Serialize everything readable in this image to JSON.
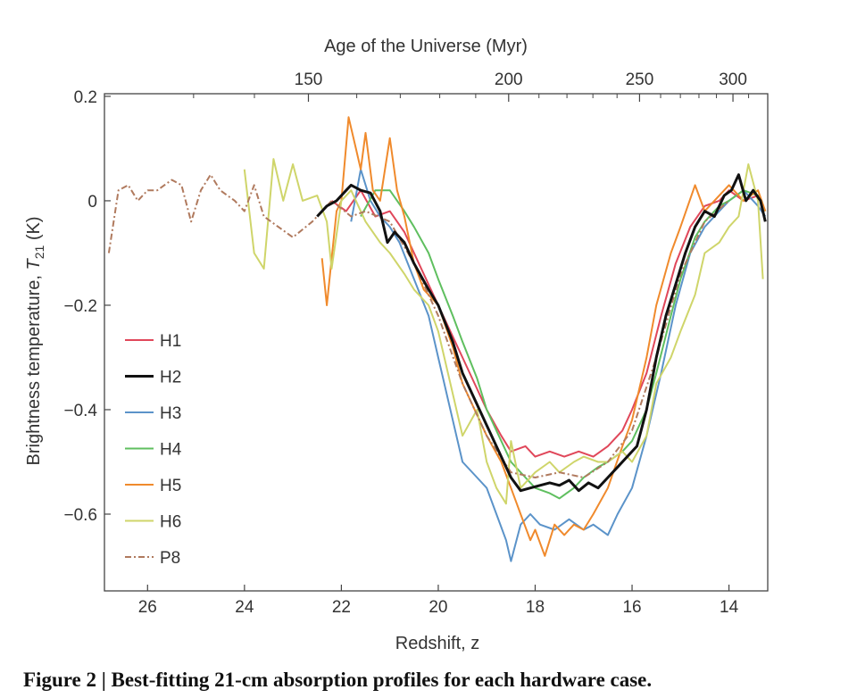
{
  "chart_data": {
    "type": "line",
    "title": "",
    "xlabel": "Redshift, z",
    "ylabel_prefix": "Brightness temperature, ",
    "ylabel_var": "T",
    "ylabel_sub": "21",
    "ylabel_suffix": " (K)",
    "top_xlabel": "Age of the Universe (Myr)",
    "xlim": [
      26.89,
      13.2
    ],
    "ylim": [
      -0.747,
      0.205
    ],
    "xticks": [
      26,
      24,
      22,
      20,
      18,
      16,
      14
    ],
    "xtick_labels": [
      "26",
      "24",
      "22",
      "20",
      "18",
      "16",
      "14"
    ],
    "yticks": [
      0.2,
      0,
      -0.2,
      -0.4,
      -0.6
    ],
    "ytick_labels": [
      "0.2",
      "0",
      "−0.2",
      "−0.4",
      "−0.6"
    ],
    "top_ticks_major": [
      150,
      200,
      250,
      300
    ],
    "top_tick_labels": [
      "150",
      "200",
      "250",
      "300"
    ],
    "top_ticks_minor": [
      130,
      140,
      160,
      170,
      180,
      190,
      210,
      220,
      230,
      240,
      260,
      270,
      280,
      290,
      310
    ],
    "age_ref": {
      "age": 150,
      "z": 22.68
    },
    "legend_position": "left",
    "series": [
      {
        "name": "H1",
        "color": "#e0475a",
        "dash": "",
        "width": 2,
        "x": [
          22.2,
          21.9,
          21.6,
          21.3,
          21.0,
          20.7,
          20.4,
          20.0,
          19.5,
          19.0,
          18.7,
          18.5,
          18.2,
          18.0,
          17.7,
          17.4,
          17.1,
          16.8,
          16.5,
          16.2,
          16.0,
          15.7,
          15.4,
          15.1,
          14.8,
          14.5,
          14.2,
          14.0,
          13.7,
          13.4,
          13.25
        ],
        "y": [
          0.0,
          -0.02,
          0.02,
          -0.03,
          -0.02,
          -0.06,
          -0.12,
          -0.2,
          -0.3,
          -0.4,
          -0.45,
          -0.48,
          -0.47,
          -0.49,
          -0.48,
          -0.49,
          -0.48,
          -0.49,
          -0.47,
          -0.44,
          -0.4,
          -0.33,
          -0.22,
          -0.12,
          -0.05,
          -0.01,
          0.0,
          0.02,
          0.0,
          0.01,
          -0.02
        ]
      },
      {
        "name": "H3",
        "color": "#5b93c9",
        "dash": "",
        "width": 2,
        "x": [
          21.8,
          21.6,
          21.4,
          21.2,
          21.0,
          20.8,
          20.5,
          20.2,
          20.0,
          19.7,
          19.5,
          19.2,
          19.0,
          18.8,
          18.6,
          18.5,
          18.3,
          18.1,
          17.9,
          17.6,
          17.3,
          17.0,
          16.8,
          16.5,
          16.3,
          16.0,
          15.7,
          15.4,
          15.1,
          14.8,
          14.5,
          14.2,
          14.0,
          13.7,
          13.4,
          13.25
        ],
        "y": [
          -0.04,
          0.06,
          0.0,
          -0.03,
          -0.05,
          -0.08,
          -0.15,
          -0.22,
          -0.3,
          -0.42,
          -0.5,
          -0.53,
          -0.55,
          -0.6,
          -0.65,
          -0.69,
          -0.62,
          -0.6,
          -0.62,
          -0.63,
          -0.61,
          -0.63,
          -0.62,
          -0.64,
          -0.6,
          -0.55,
          -0.45,
          -0.33,
          -0.2,
          -0.1,
          -0.05,
          -0.02,
          0.0,
          0.02,
          -0.01,
          -0.03
        ]
      },
      {
        "name": "H4",
        "color": "#5fbf5f",
        "dash": "",
        "width": 2,
        "x": [
          21.6,
          21.3,
          21.0,
          20.7,
          20.5,
          20.2,
          20.0,
          19.7,
          19.5,
          19.2,
          19.0,
          18.7,
          18.5,
          18.2,
          18.0,
          17.7,
          17.5,
          17.2,
          17.0,
          16.7,
          16.5,
          16.2,
          16.0,
          15.7,
          15.5,
          15.2,
          15.0,
          14.7,
          14.5,
          14.2,
          14.0,
          13.7,
          13.4,
          13.25
        ],
        "y": [
          -0.03,
          0.02,
          0.02,
          -0.02,
          -0.05,
          -0.1,
          -0.15,
          -0.22,
          -0.27,
          -0.34,
          -0.4,
          -0.46,
          -0.5,
          -0.53,
          -0.55,
          -0.56,
          -0.57,
          -0.55,
          -0.53,
          -0.51,
          -0.5,
          -0.48,
          -0.46,
          -0.4,
          -0.33,
          -0.22,
          -0.15,
          -0.07,
          -0.04,
          -0.01,
          0.0,
          0.02,
          0.01,
          -0.02
        ]
      },
      {
        "name": "H5",
        "color": "#f08a2c",
        "dash": "",
        "width": 2,
        "x": [
          22.4,
          22.3,
          22.1,
          22.0,
          21.85,
          21.7,
          21.6,
          21.5,
          21.35,
          21.2,
          21.0,
          20.85,
          20.7,
          20.5,
          20.3,
          20.0,
          19.7,
          19.5,
          19.2,
          19.0,
          18.7,
          18.5,
          18.3,
          18.1,
          18.0,
          17.8,
          17.6,
          17.4,
          17.2,
          17.0,
          16.8,
          16.5,
          16.2,
          16.0,
          15.7,
          15.5,
          15.2,
          15.0,
          14.7,
          14.5,
          14.2,
          14.0,
          13.7,
          13.4,
          13.25
        ],
        "y": [
          -0.11,
          -0.2,
          -0.02,
          0.0,
          0.16,
          0.1,
          0.06,
          0.13,
          0.02,
          0.0,
          0.12,
          0.02,
          -0.03,
          -0.12,
          -0.17,
          -0.2,
          -0.28,
          -0.35,
          -0.41,
          -0.45,
          -0.5,
          -0.55,
          -0.6,
          -0.65,
          -0.63,
          -0.68,
          -0.62,
          -0.64,
          -0.62,
          -0.63,
          -0.6,
          -0.55,
          -0.47,
          -0.42,
          -0.3,
          -0.2,
          -0.1,
          -0.05,
          0.03,
          -0.02,
          0.01,
          0.03,
          0.0,
          0.02,
          -0.02
        ]
      },
      {
        "name": "H6",
        "color": "#cfd56a",
        "dash": "",
        "width": 2,
        "x": [
          24.0,
          23.8,
          23.6,
          23.4,
          23.2,
          23.0,
          22.8,
          22.5,
          22.3,
          22.2,
          22.0,
          21.8,
          21.5,
          21.2,
          21.0,
          20.7,
          20.5,
          20.2,
          20.0,
          19.8,
          19.5,
          19.2,
          19.0,
          18.8,
          18.6,
          18.5,
          18.3,
          18.0,
          17.7,
          17.5,
          17.2,
          17.0,
          16.7,
          16.5,
          16.2,
          16.0,
          15.7,
          15.5,
          15.2,
          15.0,
          14.7,
          14.5,
          14.2,
          14.0,
          13.8,
          13.6,
          13.4,
          13.3
        ],
        "y": [
          0.06,
          -0.1,
          -0.13,
          0.08,
          0.0,
          0.07,
          0.0,
          0.01,
          -0.04,
          -0.13,
          0.0,
          0.02,
          -0.04,
          -0.08,
          -0.1,
          -0.14,
          -0.17,
          -0.2,
          -0.25,
          -0.33,
          -0.45,
          -0.4,
          -0.5,
          -0.55,
          -0.58,
          -0.46,
          -0.55,
          -0.52,
          -0.5,
          -0.52,
          -0.5,
          -0.49,
          -0.5,
          -0.5,
          -0.48,
          -0.5,
          -0.45,
          -0.35,
          -0.3,
          -0.25,
          -0.18,
          -0.1,
          -0.08,
          -0.05,
          -0.03,
          0.07,
          0.0,
          -0.15
        ]
      },
      {
        "name": "P8",
        "color": "#b07a5e",
        "dash": "7,3,2,3",
        "width": 2,
        "x": [
          26.8,
          26.6,
          26.4,
          26.2,
          26.0,
          25.8,
          25.5,
          25.3,
          25.1,
          24.9,
          24.7,
          24.5,
          24.2,
          24.0,
          23.8,
          23.6,
          23.3,
          23.0,
          22.6,
          22.2,
          21.8,
          21.5,
          21.0,
          20.5,
          20.0,
          19.5,
          19.0,
          18.5,
          18.0,
          17.5,
          17.0,
          16.5,
          16.0,
          15.5,
          15.0,
          14.5,
          14.0
        ],
        "y": [
          -0.1,
          0.02,
          0.03,
          0.0,
          0.02,
          0.02,
          0.04,
          0.03,
          -0.04,
          0.02,
          0.05,
          0.02,
          0.0,
          -0.02,
          0.03,
          -0.03,
          -0.05,
          -0.07,
          -0.04,
          0.0,
          -0.03,
          -0.02,
          -0.04,
          -0.12,
          -0.22,
          -0.35,
          -0.45,
          -0.52,
          -0.53,
          -0.52,
          -0.53,
          -0.5,
          -0.44,
          -0.3,
          -0.14,
          -0.04,
          0.0
        ]
      },
      {
        "name": "H2",
        "color": "#111111",
        "dash": "",
        "width": 3,
        "x": [
          22.5,
          22.3,
          22.1,
          21.9,
          21.8,
          21.6,
          21.4,
          21.2,
          21.05,
          20.9,
          20.7,
          20.5,
          20.2,
          20.0,
          19.7,
          19.5,
          19.2,
          19.0,
          18.7,
          18.5,
          18.3,
          18.1,
          17.9,
          17.7,
          17.5,
          17.3,
          17.1,
          16.9,
          16.7,
          16.5,
          16.3,
          16.1,
          15.9,
          15.7,
          15.5,
          15.3,
          15.1,
          14.9,
          14.7,
          14.5,
          14.3,
          14.1,
          13.95,
          13.8,
          13.65,
          13.5,
          13.35,
          13.25
        ],
        "y": [
          -0.03,
          -0.01,
          0.0,
          0.02,
          0.03,
          0.02,
          0.015,
          -0.02,
          -0.08,
          -0.06,
          -0.08,
          -0.12,
          -0.17,
          -0.2,
          -0.27,
          -0.33,
          -0.39,
          -0.43,
          -0.49,
          -0.53,
          -0.555,
          -0.55,
          -0.545,
          -0.54,
          -0.545,
          -0.535,
          -0.555,
          -0.54,
          -0.55,
          -0.53,
          -0.51,
          -0.49,
          -0.47,
          -0.4,
          -0.3,
          -0.22,
          -0.16,
          -0.1,
          -0.05,
          -0.02,
          -0.03,
          0.01,
          0.02,
          0.05,
          0.0,
          0.02,
          0.0,
          -0.04
        ]
      }
    ],
    "legend_order": [
      "H1",
      "H2",
      "H3",
      "H4",
      "H5",
      "H6",
      "P8"
    ]
  },
  "caption": "Figure 2 | Best-fitting 21-cm absorption profiles for each hardware case."
}
